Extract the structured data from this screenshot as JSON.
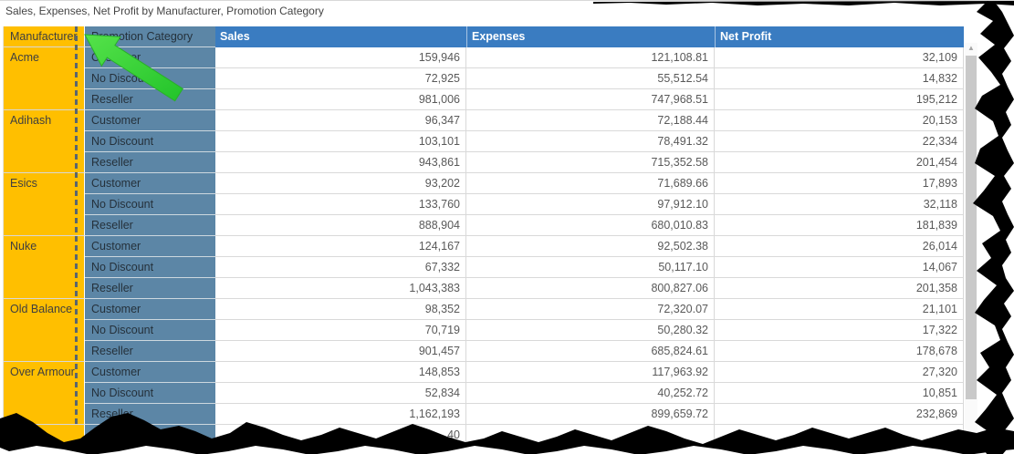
{
  "title": "Sales, Expenses, Net Profit by Manufacturer, Promotion Category",
  "table": {
    "headers": {
      "manufacturer": "Manufacturer",
      "promotion": "Promotion Category",
      "sales": "Sales",
      "expenses": "Expenses",
      "net_profit": "Net Profit"
    },
    "groups": [
      {
        "name": "Acme",
        "rows": [
          {
            "promotion": "Customer",
            "sales": "159,946",
            "expenses": "121,108.81",
            "net_profit": "32,109"
          },
          {
            "promotion": "No Discount",
            "sales": "72,925",
            "expenses": "55,512.54",
            "net_profit": "14,832"
          },
          {
            "promotion": "Reseller",
            "sales": "981,006",
            "expenses": "747,968.51",
            "net_profit": "195,212"
          }
        ]
      },
      {
        "name": "Adihash",
        "rows": [
          {
            "promotion": "Customer",
            "sales": "96,347",
            "expenses": "72,188.44",
            "net_profit": "20,153"
          },
          {
            "promotion": "No Discount",
            "sales": "103,101",
            "expenses": "78,491.32",
            "net_profit": "22,334"
          },
          {
            "promotion": "Reseller",
            "sales": "943,861",
            "expenses": "715,352.58",
            "net_profit": "201,454"
          }
        ]
      },
      {
        "name": "Esics",
        "rows": [
          {
            "promotion": "Customer",
            "sales": "93,202",
            "expenses": "71,689.66",
            "net_profit": "17,893"
          },
          {
            "promotion": "No Discount",
            "sales": "133,760",
            "expenses": "97,912.10",
            "net_profit": "32,118"
          },
          {
            "promotion": "Reseller",
            "sales": "888,904",
            "expenses": "680,010.83",
            "net_profit": "181,839"
          }
        ]
      },
      {
        "name": "Nuke",
        "rows": [
          {
            "promotion": "Customer",
            "sales": "124,167",
            "expenses": "92,502.38",
            "net_profit": "26,014"
          },
          {
            "promotion": "No Discount",
            "sales": "67,332",
            "expenses": "50,117.10",
            "net_profit": "14,067"
          },
          {
            "promotion": "Reseller",
            "sales": "1,043,383",
            "expenses": "800,827.06",
            "net_profit": "201,358"
          }
        ]
      },
      {
        "name": "Old Balance",
        "rows": [
          {
            "promotion": "Customer",
            "sales": "98,352",
            "expenses": "72,320.07",
            "net_profit": "21,101"
          },
          {
            "promotion": "No Discount",
            "sales": "70,719",
            "expenses": "50,280.32",
            "net_profit": "17,322"
          },
          {
            "promotion": "Reseller",
            "sales": "901,457",
            "expenses": "685,824.61",
            "net_profit": "178,678"
          }
        ]
      },
      {
        "name": "Over Armour",
        "rows": [
          {
            "promotion": "Customer",
            "sales": "148,853",
            "expenses": "117,963.92",
            "net_profit": "27,320"
          },
          {
            "promotion": "No Discount",
            "sales": "52,834",
            "expenses": "40,252.72",
            "net_profit": "10,851"
          },
          {
            "promotion": "Reseller",
            "sales": "1,162,193",
            "expenses": "899,659.72",
            "net_profit": "232,869"
          }
        ]
      }
    ],
    "partial_row": {
      "manufacturer": "",
      "promotion": "",
      "sales": "40",
      "expenses": "",
      "net_profit": ""
    }
  },
  "scrollbar": {
    "up_arrow_icon": "▲"
  },
  "annotations": {
    "arrow_icon": "green-arrow-pointing-at-manufacturer-column",
    "selection": "manufacturer-column-dashed-highlight"
  },
  "colors": {
    "manufacturer_column": "#FFBF00",
    "promotion_column": "#5C86A6",
    "value_header": "#3A7CC1",
    "arrow_green": "#35D435",
    "grid_line": "#D9D9D9",
    "value_text": "#595959",
    "title_text": "#444444",
    "torn_edge": "#000000"
  }
}
